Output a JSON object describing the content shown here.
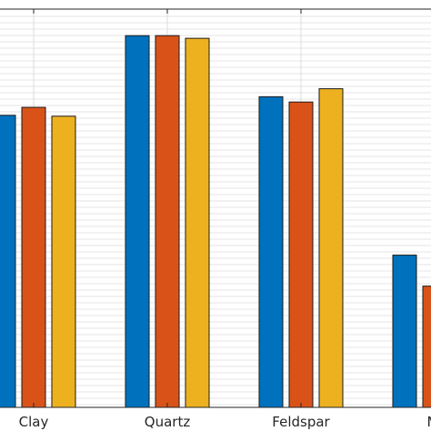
{
  "chart_data": {
    "type": "bar",
    "categories": [
      "Clay",
      "Quartz",
      "Feldspar",
      "Mi"
    ],
    "series": [
      {
        "values": [
          330,
          420,
          351,
          172
        ]
      },
      {
        "values": [
          339,
          420,
          345,
          137
        ]
      },
      {
        "values": [
          329,
          417,
          360,
          null
        ]
      }
    ],
    "colors": [
      "#0072BD",
      "#D95319",
      "#EDB120"
    ],
    "ylim": [
      0,
      450
    ],
    "grid": "on",
    "legend": "none"
  }
}
